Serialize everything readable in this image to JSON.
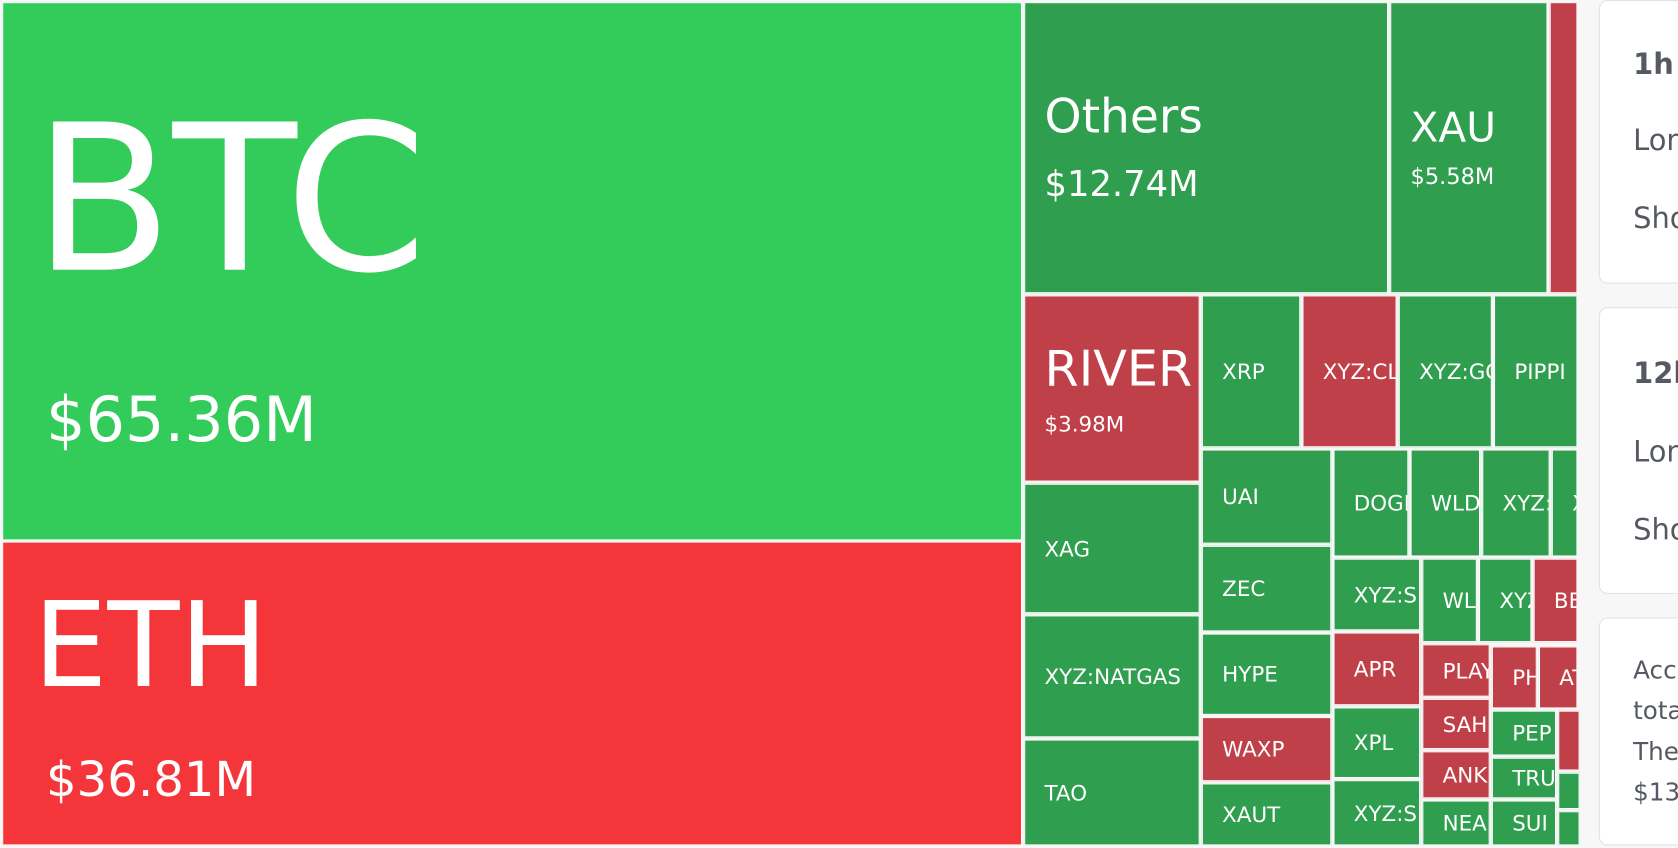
{
  "treemap": {
    "tiles": [
      {
        "label": "BTC",
        "value": "$65.36M"
      },
      {
        "label": "ETH",
        "value": "$36.81M"
      },
      {
        "label": "Others",
        "value": "$12.74M"
      },
      {
        "label": "XAU",
        "value": "$5.58M"
      },
      {
        "label": "RIVER",
        "value": "$3.98M"
      },
      {
        "label": "XRP"
      },
      {
        "label": "XYZ:CL"
      },
      {
        "label": "XYZ:GO"
      },
      {
        "label": "PIPPI"
      },
      {
        "label": "XAG"
      },
      {
        "label": "XYZ:NATGAS"
      },
      {
        "label": "TAO"
      },
      {
        "label": "UAI"
      },
      {
        "label": "ZEC"
      },
      {
        "label": "HYPE"
      },
      {
        "label": "WAXP"
      },
      {
        "label": "XAUT"
      },
      {
        "label": "DOGE"
      },
      {
        "label": "WLD"
      },
      {
        "label": "XYZ:"
      },
      {
        "label": "X"
      },
      {
        "label": "XYZ:S"
      },
      {
        "label": "WL"
      },
      {
        "label": "XYZ"
      },
      {
        "label": "BE"
      },
      {
        "label": "APR"
      },
      {
        "label": "XPL"
      },
      {
        "label": "XYZ:S"
      },
      {
        "label": "PLAY"
      },
      {
        "label": "SAH"
      },
      {
        "label": "ANK"
      },
      {
        "label": "NEA"
      },
      {
        "label": "PH"
      },
      {
        "label": "AT"
      },
      {
        "label": "PEP"
      },
      {
        "label": "TRU"
      },
      {
        "label": "SUI"
      }
    ]
  },
  "sidebar": {
    "cards": [
      {
        "lines": [
          "1h",
          "Lon",
          "Sho"
        ]
      },
      {
        "lines": [
          "12h",
          "Lon",
          "Sho"
        ]
      },
      {
        "lines": [
          "Acc",
          "tota",
          "The",
          "$13"
        ]
      }
    ]
  }
}
